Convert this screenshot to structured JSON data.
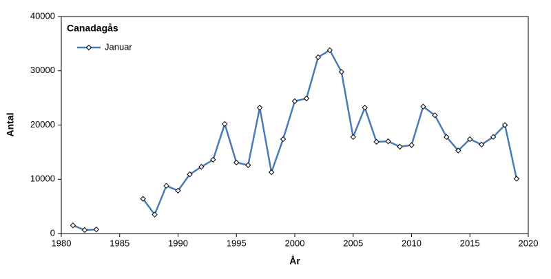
{
  "chart_data": {
    "type": "line",
    "title": "Canadagås",
    "x_label": "År",
    "y_label": "Antal",
    "x": [
      1981,
      1982,
      1983,
      1984,
      1985,
      1986,
      1987,
      1988,
      1989,
      1990,
      1991,
      1992,
      1993,
      1994,
      1995,
      1996,
      1997,
      1998,
      1999,
      2000,
      2001,
      2002,
      2003,
      2004,
      2005,
      2006,
      2007,
      2008,
      2009,
      2010,
      2011,
      2012,
      2013,
      2014,
      2015,
      2016,
      2017,
      2018,
      2019
    ],
    "series": [
      {
        "name": "Januar",
        "color": "#4a7ab5",
        "values": [
          1500,
          650,
          750,
          null,
          null,
          null,
          6400,
          3500,
          8800,
          7900,
          10900,
          12300,
          13600,
          20200,
          13100,
          12600,
          23200,
          11300,
          17400,
          24400,
          24900,
          32500,
          33800,
          29800,
          17800,
          23200,
          16900,
          17000,
          16000,
          16300,
          23400,
          21800,
          17800,
          15300,
          17400,
          16400,
          17800,
          20000,
          10100
        ]
      }
    ],
    "xlim": [
      1980,
      2020
    ],
    "xticks": [
      1980,
      1985,
      1990,
      1995,
      2000,
      2005,
      2010,
      2015,
      2020
    ],
    "ylim": [
      0,
      40000
    ],
    "yticks": [
      0,
      10000,
      20000,
      30000,
      40000
    ],
    "legend": "upper-left"
  }
}
